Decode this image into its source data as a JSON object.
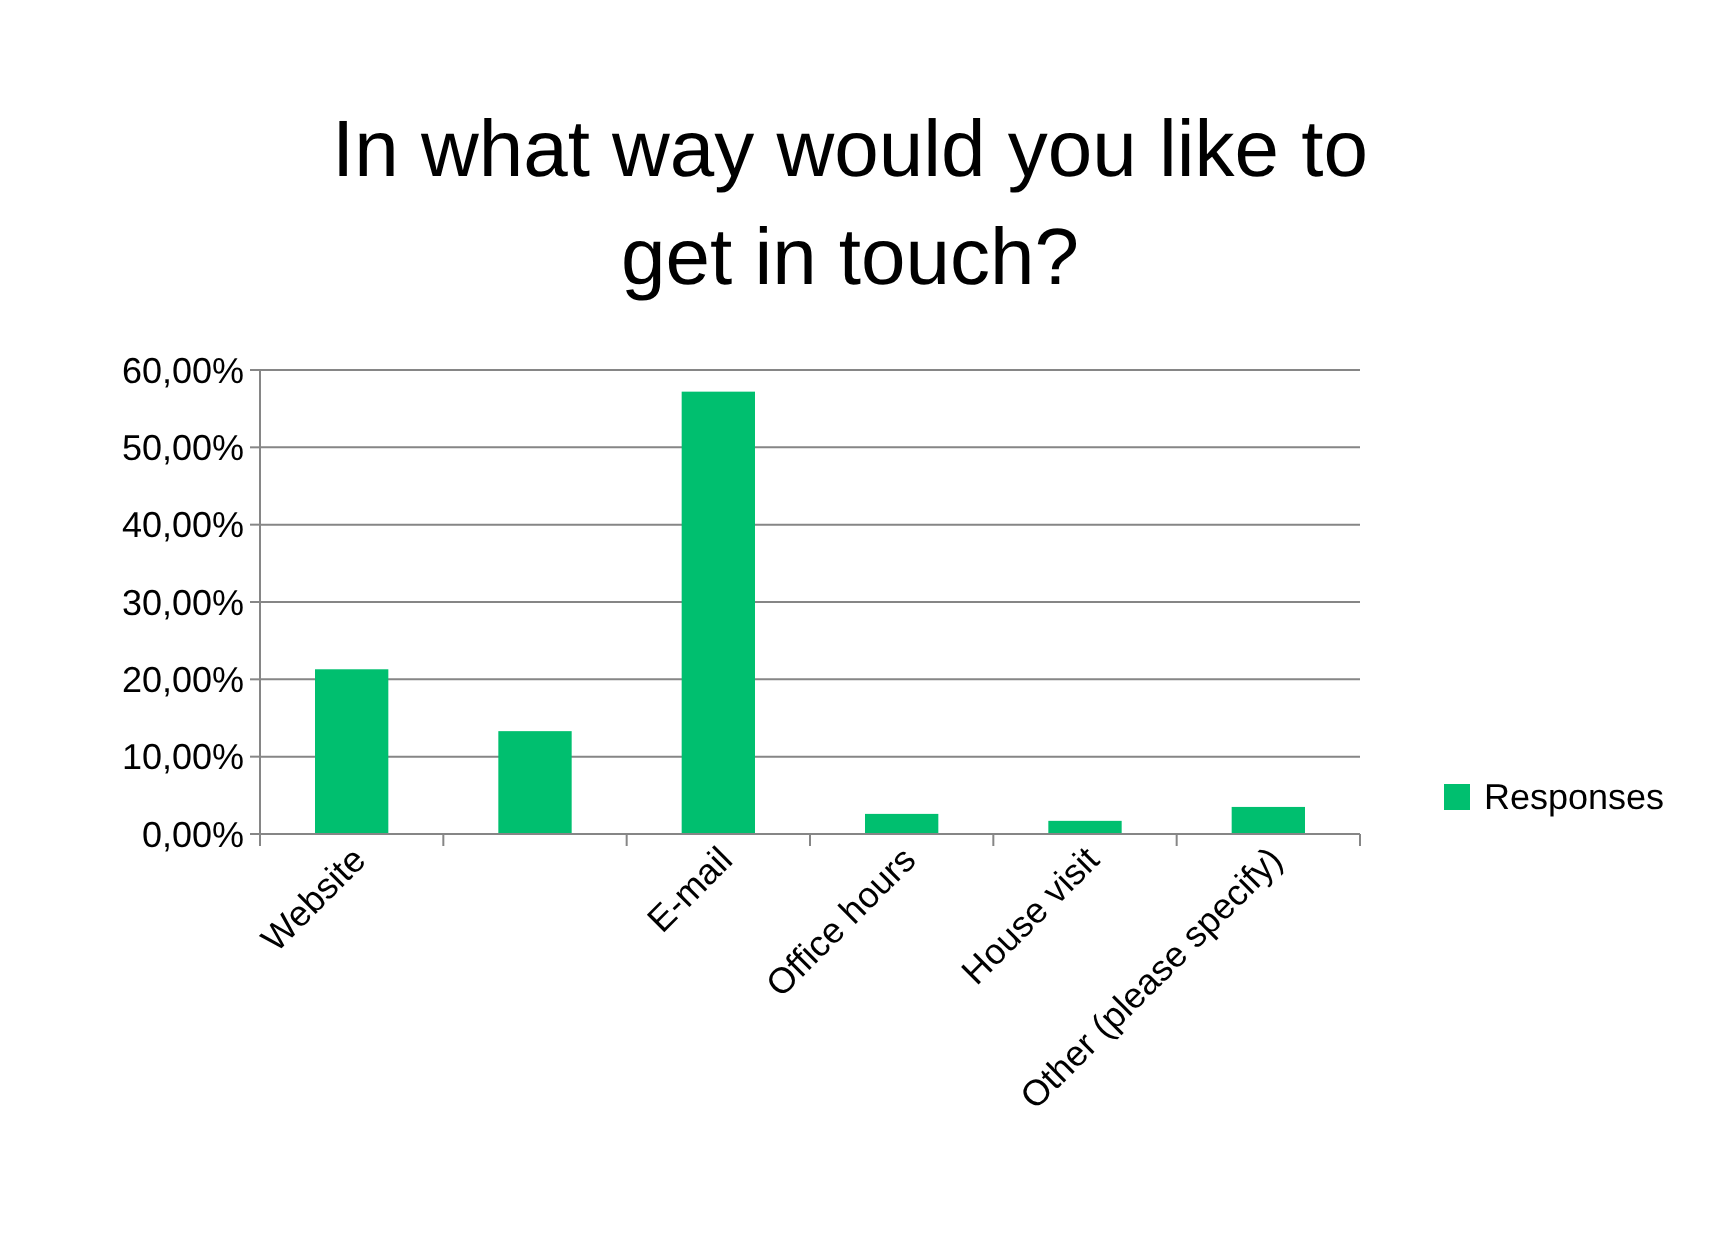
{
  "chart_data": {
    "type": "bar",
    "title": "In what way would you like to get in touch?",
    "categories": [
      "Website",
      null,
      "E-mail",
      "Office hours",
      "House visit",
      "Other (please specify)"
    ],
    "series": [
      {
        "name": "Responses",
        "color": "#00bf6f",
        "values": [
          21.3,
          13.3,
          57.2,
          2.6,
          1.7,
          3.5
        ]
      }
    ],
    "ylim": [
      0,
      60
    ],
    "yticks": [
      {
        "value": 0,
        "label": "0,00%"
      },
      {
        "value": 10,
        "label": "10,00%"
      },
      {
        "value": 20,
        "label": "20,00%"
      },
      {
        "value": 30,
        "label": "30,00%"
      },
      {
        "value": 40,
        "label": "40,00%"
      },
      {
        "value": 50,
        "label": "50,00%"
      },
      {
        "value": 60,
        "label": "60,00%"
      }
    ],
    "grid": "y",
    "legend": "right"
  }
}
